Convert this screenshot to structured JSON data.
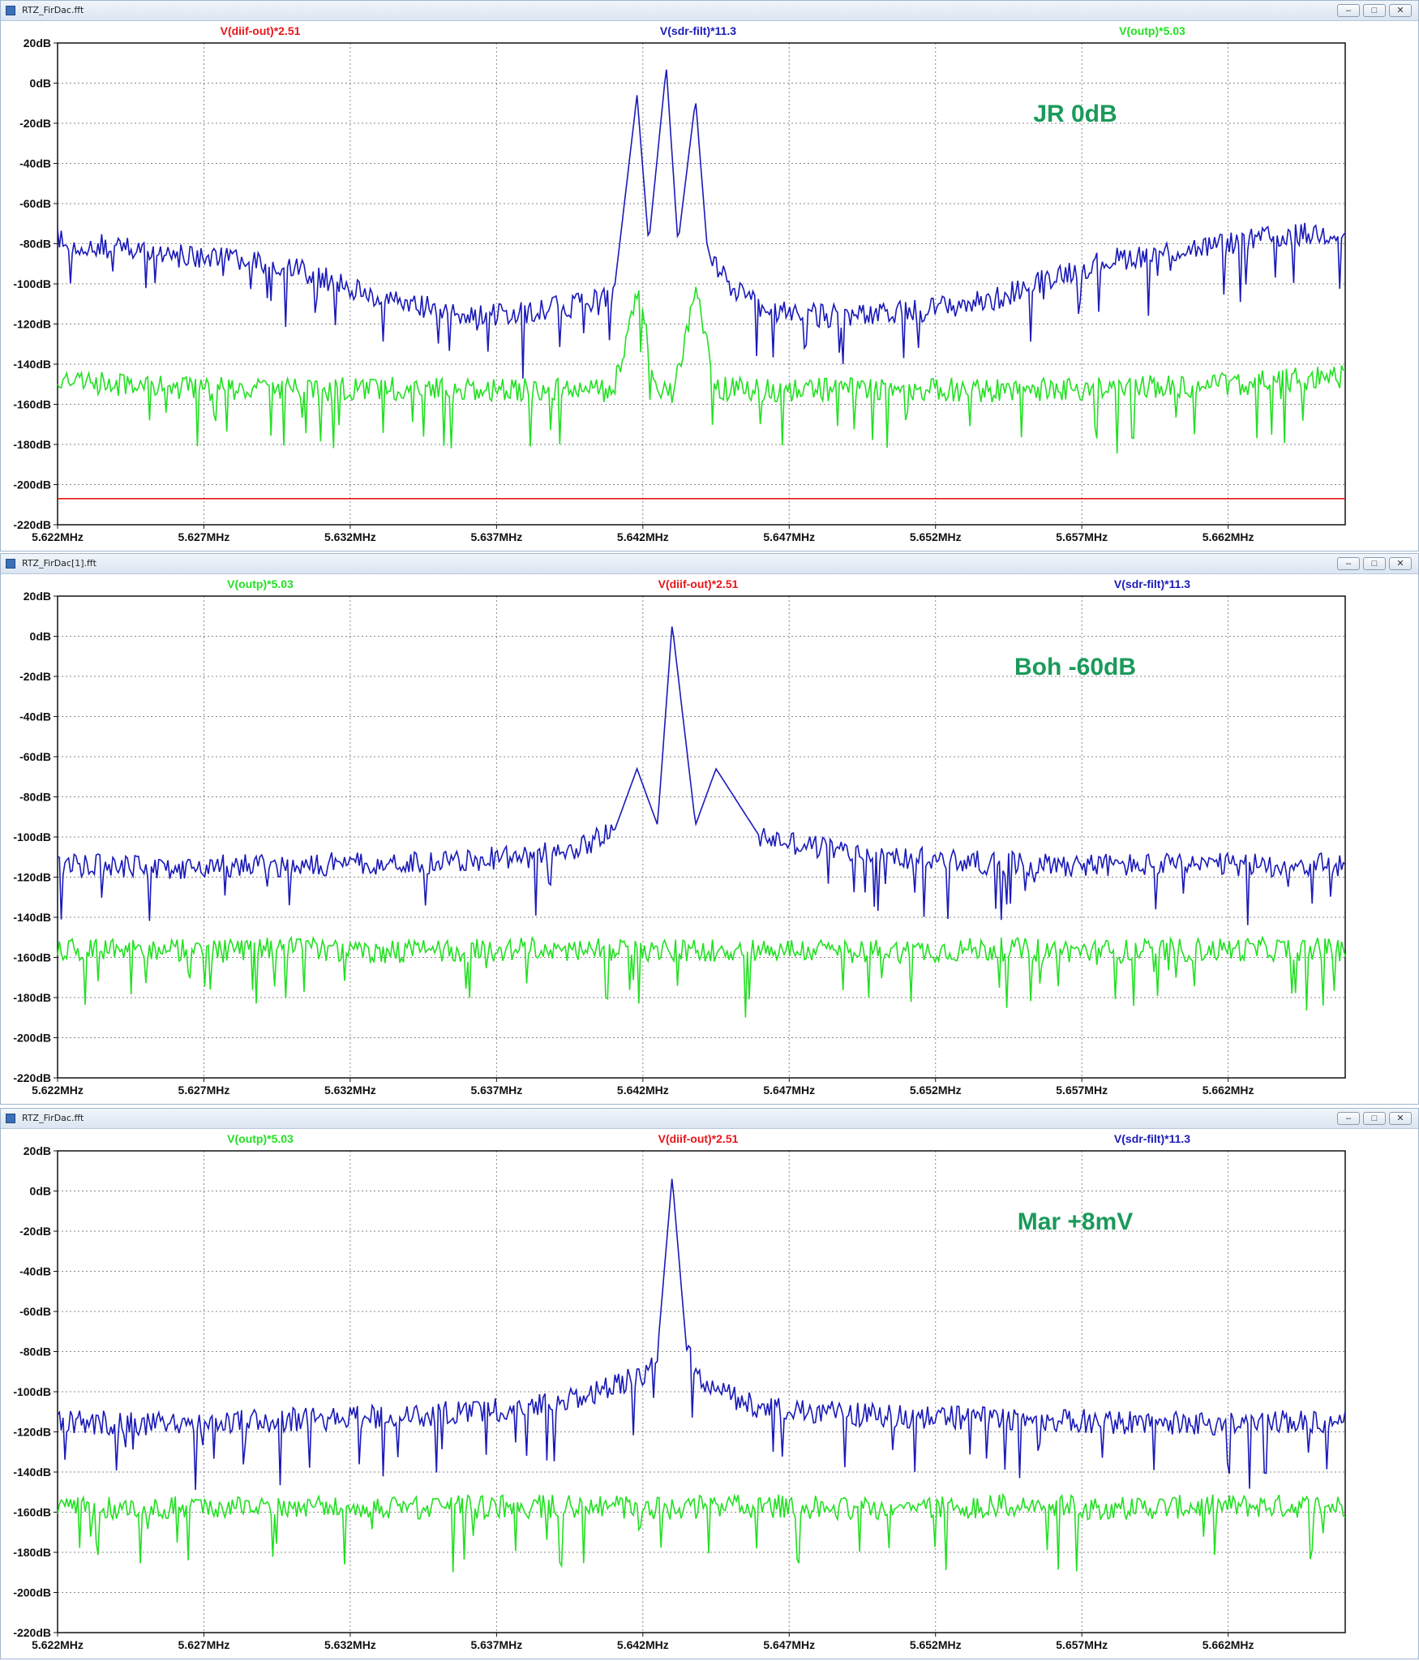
{
  "colors": {
    "diif_out": "#e8161a",
    "sdr_filt": "#1a1ab8",
    "outp": "#22e022",
    "annotation": "#1a9a5a",
    "grid": "#8a8a8a"
  },
  "windows": [
    {
      "title": "RTZ_FirDac.fft",
      "annotation": "JR 0dB",
      "legend": [
        {
          "label": "V(diif-out)*2.51",
          "series": "diif_out"
        },
        {
          "label": "V(sdr-filt)*11.3",
          "series": "sdr_filt"
        },
        {
          "label": "V(outp)*5.03",
          "series": "outp"
        }
      ]
    },
    {
      "title": "RTZ_FirDac[1].fft",
      "annotation": "Boh -60dB",
      "legend": [
        {
          "label": "V(outp)*5.03",
          "series": "outp"
        },
        {
          "label": "V(diif-out)*2.51",
          "series": "diif_out"
        },
        {
          "label": "V(sdr-filt)*11.3",
          "series": "sdr_filt"
        }
      ]
    },
    {
      "title": "RTZ_FirDac.fft",
      "annotation": "Mar +8mV",
      "legend": [
        {
          "label": "V(outp)*5.03",
          "series": "outp"
        },
        {
          "label": "V(diif-out)*2.51",
          "series": "diif_out"
        },
        {
          "label": "V(sdr-filt)*11.3",
          "series": "sdr_filt"
        }
      ]
    }
  ],
  "chart_data": [
    {
      "type": "line",
      "x_ticks": [
        "5.622MHz",
        "5.627MHz",
        "5.632MHz",
        "5.637MHz",
        "5.642MHz",
        "5.647MHz",
        "5.652MHz",
        "5.657MHz",
        "5.662MHz"
      ],
      "y_ticks": [
        "20dB",
        "0dB",
        "-20dB",
        "-40dB",
        "-60dB",
        "-80dB",
        "-100dB",
        "-120dB",
        "-140dB",
        "-160dB",
        "-180dB",
        "-200dB",
        "-220dB"
      ],
      "xlim": [
        5.622,
        5.666
      ],
      "ylim": [
        -220,
        20
      ],
      "x_unit": "MHz",
      "y_unit": "dB",
      "grid": true,
      "series": [
        {
          "name": "V(sdr-filt)*11.3",
          "key": "sdr_filt",
          "x": [
            5.622,
            5.624,
            5.626,
            5.628,
            5.63,
            5.632,
            5.634,
            5.636,
            5.638,
            5.64,
            5.641,
            5.6418,
            5.6422,
            5.6428,
            5.6432,
            5.6438,
            5.6442,
            5.6448,
            5.6452,
            5.6458,
            5.6465,
            5.648,
            5.65,
            5.652,
            5.654,
            5.656,
            5.658,
            5.66,
            5.662,
            5.664,
            5.666
          ],
          "y": [
            -78,
            -82,
            -86,
            -88,
            -92,
            -102,
            -110,
            -116,
            -114,
            -110,
            -106,
            -6,
            -80,
            8,
            -80,
            -8,
            -82,
            -98,
            -104,
            -110,
            -114,
            -116,
            -116,
            -112,
            -108,
            -96,
            -88,
            -84,
            -80,
            -76,
            -74
          ]
        },
        {
          "name": "V(outp)*5.03",
          "key": "outp",
          "x": [
            5.622,
            5.626,
            5.63,
            5.634,
            5.638,
            5.641,
            5.6418,
            5.6425,
            5.643,
            5.6438,
            5.6445,
            5.646,
            5.65,
            5.654,
            5.658,
            5.662,
            5.666
          ],
          "y": [
            -148,
            -152,
            -153,
            -152,
            -153,
            -153,
            -104,
            -152,
            -155,
            -104,
            -152,
            -153,
            -152,
            -153,
            -152,
            -150,
            -146
          ]
        },
        {
          "name": "V(diif-out)*2.51",
          "key": "diif_out",
          "x": [
            5.622,
            5.666
          ],
          "y": [
            -207,
            -207
          ]
        }
      ]
    },
    {
      "type": "line",
      "x_ticks": [
        "5.622MHz",
        "5.627MHz",
        "5.632MHz",
        "5.637MHz",
        "5.642MHz",
        "5.647MHz",
        "5.652MHz",
        "5.657MHz",
        "5.662MHz"
      ],
      "y_ticks": [
        "20dB",
        "0dB",
        "-20dB",
        "-40dB",
        "-60dB",
        "-80dB",
        "-100dB",
        "-120dB",
        "-140dB",
        "-160dB",
        "-180dB",
        "-200dB",
        "-220dB"
      ],
      "xlim": [
        5.622,
        5.666
      ],
      "ylim": [
        -220,
        20
      ],
      "x_unit": "MHz",
      "y_unit": "dB",
      "grid": true,
      "series": [
        {
          "name": "V(sdr-filt)*11.3",
          "key": "sdr_filt",
          "x": [
            5.622,
            5.626,
            5.63,
            5.634,
            5.638,
            5.64,
            5.641,
            5.6418,
            5.6425,
            5.643,
            5.6438,
            5.6445,
            5.646,
            5.65,
            5.654,
            5.658,
            5.662,
            5.666
          ],
          "y": [
            -114,
            -115,
            -114,
            -113,
            -110,
            -104,
            -98,
            -66,
            -94,
            6,
            -94,
            -66,
            -100,
            -110,
            -113,
            -114,
            -114,
            -114
          ]
        },
        {
          "name": "V(outp)*5.03",
          "key": "outp",
          "x": [
            5.622,
            5.626,
            5.63,
            5.634,
            5.638,
            5.642,
            5.646,
            5.65,
            5.654,
            5.658,
            5.662,
            5.666
          ],
          "y": [
            -156,
            -157,
            -156,
            -157,
            -156,
            -157,
            -156,
            -157,
            -156,
            -157,
            -156,
            -156
          ]
        },
        {
          "name": "V(diif-out)*2.51",
          "key": "diif_out",
          "x": [],
          "y": []
        }
      ]
    },
    {
      "type": "line",
      "x_ticks": [
        "5.622MHz",
        "5.627MHz",
        "5.632MHz",
        "5.637MHz",
        "5.642MHz",
        "5.647MHz",
        "5.652MHz",
        "5.657MHz",
        "5.662MHz"
      ],
      "y_ticks": [
        "20dB",
        "0dB",
        "-20dB",
        "-40dB",
        "-60dB",
        "-80dB",
        "-100dB",
        "-120dB",
        "-140dB",
        "-160dB",
        "-180dB",
        "-200dB",
        "-220dB"
      ],
      "xlim": [
        5.622,
        5.666
      ],
      "ylim": [
        -220,
        20
      ],
      "x_unit": "MHz",
      "y_unit": "dB",
      "grid": true,
      "series": [
        {
          "name": "V(sdr-filt)*11.3",
          "key": "sdr_filt",
          "x": [
            5.622,
            5.626,
            5.63,
            5.634,
            5.638,
            5.64,
            5.642,
            5.6425,
            5.643,
            5.6435,
            5.644,
            5.646,
            5.65,
            5.654,
            5.658,
            5.662,
            5.666
          ],
          "y": [
            -115,
            -116,
            -114,
            -112,
            -108,
            -102,
            -92,
            -80,
            7,
            -80,
            -96,
            -108,
            -112,
            -113,
            -115,
            -116,
            -114
          ]
        },
        {
          "name": "V(outp)*5.03",
          "key": "outp",
          "x": [
            5.622,
            5.626,
            5.63,
            5.634,
            5.638,
            5.642,
            5.646,
            5.65,
            5.654,
            5.658,
            5.662,
            5.666
          ],
          "y": [
            -157,
            -158,
            -157,
            -158,
            -157,
            -158,
            -157,
            -158,
            -157,
            -158,
            -157,
            -157
          ]
        },
        {
          "name": "V(diif-out)*2.51",
          "key": "diif_out",
          "x": [],
          "y": []
        }
      ]
    }
  ]
}
